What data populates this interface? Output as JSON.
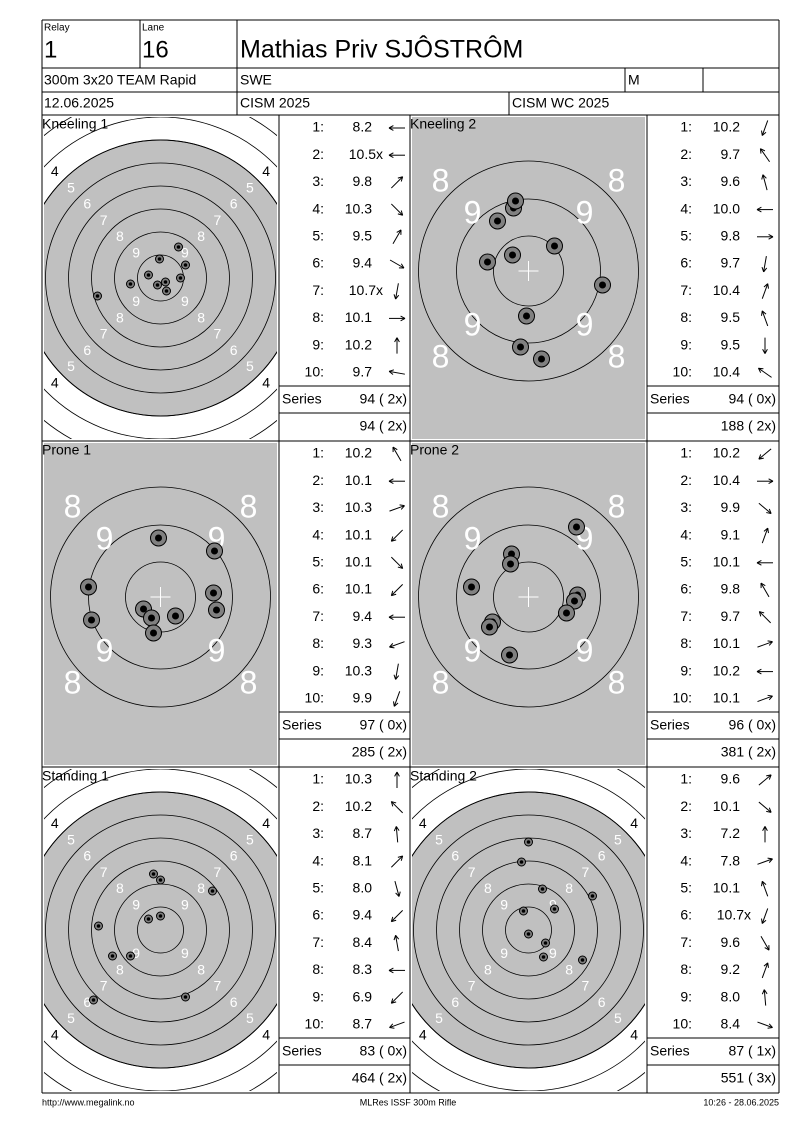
{
  "header": {
    "relay_label": "Relay",
    "relay": "1",
    "lane_label": "Lane",
    "lane": "16",
    "name": "Mathias Priv SJÔSTRÔM",
    "event": "300m 3x20 TEAM Rapid",
    "nation": "SWE",
    "gender": "M",
    "date": "12.06.2025",
    "competition": "CISM 2025",
    "match": "CISM WC 2025"
  },
  "stages": [
    {
      "title": "Kneeling 1",
      "target": "full",
      "ring_labels": [
        "4",
        "5",
        "6",
        "7",
        "8",
        "9"
      ],
      "shots": [
        {
          "n": "1:",
          "score": "8.2"
        },
        {
          "n": "2:",
          "score": "10.5x"
        },
        {
          "n": "3:",
          "score": "9.8"
        },
        {
          "n": "4:",
          "score": "10.3"
        },
        {
          "n": "5:",
          "score": "9.5"
        },
        {
          "n": "6:",
          "score": "9.4"
        },
        {
          "n": "7:",
          "score": "10.7x"
        },
        {
          "n": "8:",
          "score": "10.1"
        },
        {
          "n": "9:",
          "score": "10.2"
        },
        {
          "n": "10:",
          "score": "9.7"
        }
      ],
      "series_label": "Series",
      "series": "94 ( 2x)",
      "total": "94 ( 2x)"
    },
    {
      "title": "Kneeling 2",
      "target": "zoom",
      "ring_labels": [
        "8",
        "9"
      ],
      "shots": [
        {
          "n": "1:",
          "score": "10.2"
        },
        {
          "n": "2:",
          "score": "9.7"
        },
        {
          "n": "3:",
          "score": "9.6"
        },
        {
          "n": "4:",
          "score": "10.0"
        },
        {
          "n": "5:",
          "score": "9.8"
        },
        {
          "n": "6:",
          "score": "9.7"
        },
        {
          "n": "7:",
          "score": "10.4"
        },
        {
          "n": "8:",
          "score": "9.5"
        },
        {
          "n": "9:",
          "score": "9.5"
        },
        {
          "n": "10:",
          "score": "10.4"
        }
      ],
      "series_label": "Series",
      "series": "94 ( 0x)",
      "total": "188 ( 2x)"
    },
    {
      "title": "Prone 1",
      "target": "zoom",
      "ring_labels": [
        "8",
        "9"
      ],
      "shots": [
        {
          "n": "1:",
          "score": "10.2"
        },
        {
          "n": "2:",
          "score": "10.1"
        },
        {
          "n": "3:",
          "score": "10.3"
        },
        {
          "n": "4:",
          "score": "10.1"
        },
        {
          "n": "5:",
          "score": "10.1"
        },
        {
          "n": "6:",
          "score": "10.1"
        },
        {
          "n": "7:",
          "score": "9.4"
        },
        {
          "n": "8:",
          "score": "9.3"
        },
        {
          "n": "9:",
          "score": "10.3"
        },
        {
          "n": "10:",
          "score": "9.9"
        }
      ],
      "series_label": "Series",
      "series": "97 ( 0x)",
      "total": "285 ( 2x)"
    },
    {
      "title": "Prone 2",
      "target": "zoom",
      "ring_labels": [
        "8",
        "9"
      ],
      "shots": [
        {
          "n": "1:",
          "score": "10.2"
        },
        {
          "n": "2:",
          "score": "10.4"
        },
        {
          "n": "3:",
          "score": "9.9"
        },
        {
          "n": "4:",
          "score": "9.1"
        },
        {
          "n": "5:",
          "score": "10.1"
        },
        {
          "n": "6:",
          "score": "9.8"
        },
        {
          "n": "7:",
          "score": "9.7"
        },
        {
          "n": "8:",
          "score": "10.1"
        },
        {
          "n": "9:",
          "score": "10.2"
        },
        {
          "n": "10:",
          "score": "10.1"
        }
      ],
      "series_label": "Series",
      "series": "96 ( 0x)",
      "total": "381 ( 2x)"
    },
    {
      "title": "Standing 1",
      "target": "full",
      "ring_labels": [
        "4",
        "5",
        "6",
        "7",
        "8",
        "9"
      ],
      "shots": [
        {
          "n": "1:",
          "score": "10.3"
        },
        {
          "n": "2:",
          "score": "10.2"
        },
        {
          "n": "3:",
          "score": "8.7"
        },
        {
          "n": "4:",
          "score": "8.1"
        },
        {
          "n": "5:",
          "score": "8.0"
        },
        {
          "n": "6:",
          "score": "9.4"
        },
        {
          "n": "7:",
          "score": "8.4"
        },
        {
          "n": "8:",
          "score": "8.3"
        },
        {
          "n": "9:",
          "score": "6.9"
        },
        {
          "n": "10:",
          "score": "8.7"
        }
      ],
      "series_label": "Series",
      "series": "83 ( 0x)",
      "total": "464 ( 2x)"
    },
    {
      "title": "Standing 2",
      "target": "full",
      "ring_labels": [
        "4",
        "5",
        "6",
        "7",
        "8",
        "9"
      ],
      "shots": [
        {
          "n": "1:",
          "score": "9.6"
        },
        {
          "n": "2:",
          "score": "10.1"
        },
        {
          "n": "3:",
          "score": "7.2"
        },
        {
          "n": "4:",
          "score": "7.8"
        },
        {
          "n": "5:",
          "score": "10.1"
        },
        {
          "n": "6:",
          "score": "10.7x"
        },
        {
          "n": "7:",
          "score": "9.6"
        },
        {
          "n": "8:",
          "score": "9.2"
        },
        {
          "n": "9:",
          "score": "8.0"
        },
        {
          "n": "10:",
          "score": "8.4"
        }
      ],
      "series_label": "Series",
      "series": "87 ( 1x)",
      "total": "551 ( 3x)"
    }
  ],
  "footer": {
    "url": "http://www.megalink.no",
    "software": "MLRes ISSF 300m Rifle",
    "timestamp": "10:26 - 28.06.2025"
  }
}
